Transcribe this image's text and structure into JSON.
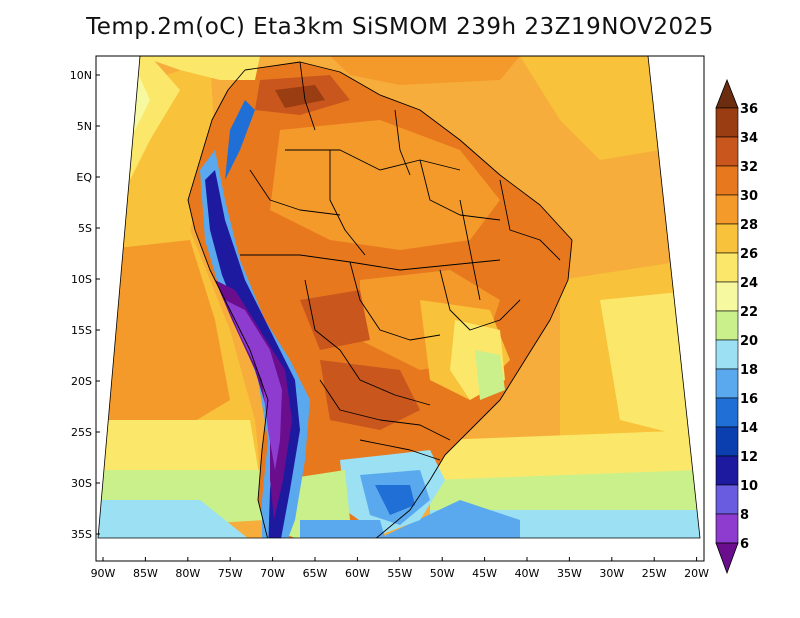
{
  "title": "Temp.2m(oC) Eta3km SiSMOM 239h 23Z19NOV2025",
  "map": {
    "lat_labels": [
      "10N",
      "5N",
      "EQ",
      "5S",
      "10S",
      "15S",
      "20S",
      "25S",
      "30S",
      "35S"
    ],
    "lon_labels": [
      "90W",
      "85W",
      "80W",
      "75W",
      "70W",
      "65W",
      "60W",
      "55W",
      "50W",
      "45W",
      "40W",
      "35W",
      "30W",
      "25W",
      "20W"
    ]
  },
  "colorbar": {
    "labels": [
      "36",
      "34",
      "32",
      "30",
      "28",
      "26",
      "24",
      "22",
      "20",
      "18",
      "16",
      "14",
      "12",
      "10",
      "8",
      "6"
    ],
    "colors": [
      "#6b2c0f",
      "#9a3d12",
      "#c9561c",
      "#e8781e",
      "#f39a2b",
      "#f8c23a",
      "#fbe86a",
      "#f7f9a0",
      "#c9f08a",
      "#9be0f3",
      "#5aa9ee",
      "#1f6fd6",
      "#0b3fb0",
      "#1d1aa0",
      "#6a5ce0",
      "#8e3ccf",
      "#6a0e8e"
    ]
  }
}
